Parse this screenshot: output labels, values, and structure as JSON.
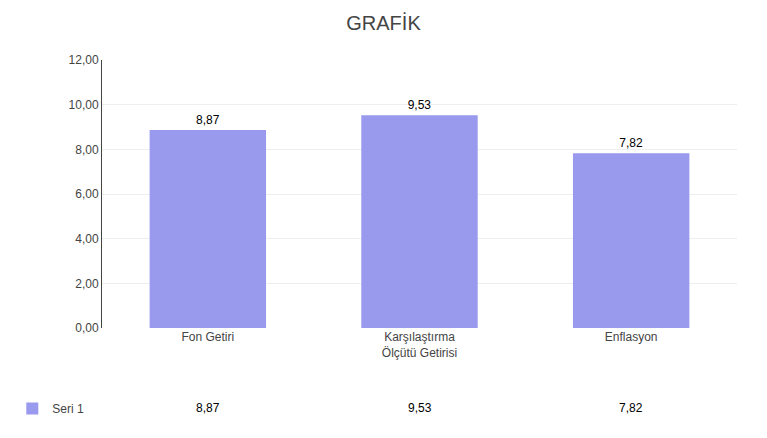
{
  "chart_data": {
    "type": "bar",
    "title": "GRAFİK",
    "categories": [
      "Fon Getiri",
      "Karşılaştırma\nÖlçütü Getirisi",
      "Enflasyon"
    ],
    "series": [
      {
        "name": "Seri 1",
        "color": "#9999EE",
        "values": [
          8.87,
          9.53,
          7.82
        ],
        "value_labels": [
          "8,87",
          "9,53",
          "7,82"
        ]
      }
    ],
    "ylim": [
      0,
      12
    ],
    "yticks": [
      {
        "value": 0,
        "label": "0,00"
      },
      {
        "value": 2,
        "label": "2,00"
      },
      {
        "value": 4,
        "label": "4,00"
      },
      {
        "value": 6,
        "label": "6,00"
      },
      {
        "value": 8,
        "label": "8,00"
      },
      {
        "value": 10,
        "label": "10,00"
      },
      {
        "value": 12,
        "label": "12,00"
      }
    ],
    "grid": true,
    "data_labels": true,
    "legend": "bottom"
  }
}
